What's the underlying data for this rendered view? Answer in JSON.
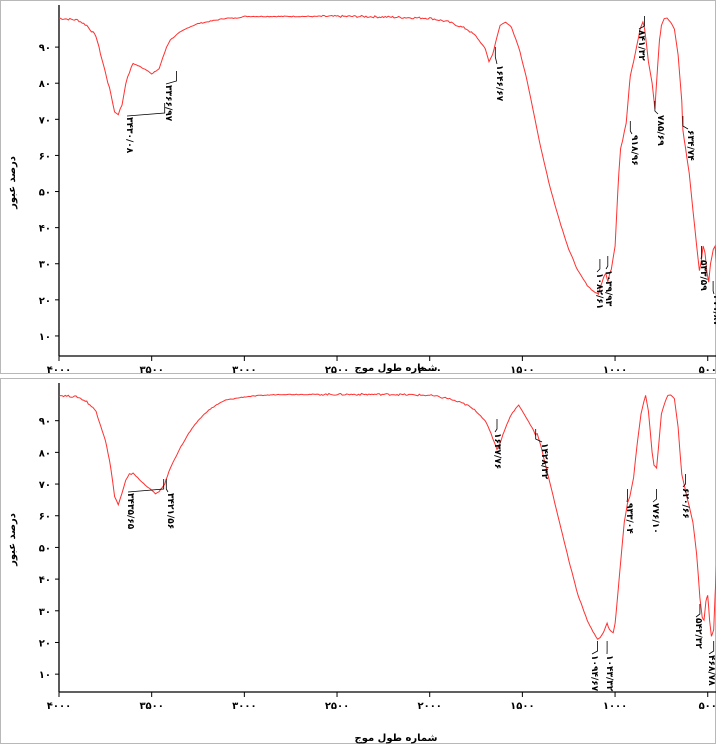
{
  "chart_data": [
    {
      "type": "line",
      "xlabel": "شماره طول موج",
      "ylabel": "درصد عبور",
      "x_reversed": true,
      "xlim": [
        4000,
        450
      ],
      "ylim": [
        5,
        100
      ],
      "x_ticks": [
        4000,
        3500,
        3000,
        2500,
        2000,
        1500,
        1000,
        500
      ],
      "x_tick_labels": [
        "۴۰۰۰",
        "۳۵۰۰",
        "۳۰۰۰",
        "۲۵۰۰",
        "۲۰۰۰",
        "۱۵۰۰",
        "۱۰۰۰",
        "۵۰۰"
      ],
      "y_ticks": [
        10,
        20,
        30,
        40,
        50,
        60,
        70,
        80,
        90
      ],
      "y_tick_labels": [
        "۱۰",
        "۲۰",
        "۳۰",
        "۴۰",
        "۵۰",
        "۶۰",
        "۷۰",
        "۸۰",
        "۹۰"
      ],
      "line_color": "#ff3030",
      "series": [
        {
          "x": [
            4000,
            3900,
            3850,
            3800,
            3760,
            3720,
            3700,
            3680,
            3660,
            3640,
            3620,
            3600,
            3560,
            3520,
            3500,
            3460,
            3440,
            3420,
            3400,
            3350,
            3300,
            3250,
            3200,
            3150,
            3100,
            3050,
            3000,
            2900,
            2800,
            2600,
            2400,
            2200,
            2000,
            1900,
            1800,
            1750,
            1700,
            1680,
            1660,
            1646,
            1620,
            1590,
            1560,
            1520,
            1480,
            1440,
            1400,
            1350,
            1300,
            1250,
            1200,
            1150,
            1120,
            1090,
            1082,
            1070,
            1060,
            1050,
            1039,
            1030,
            1020,
            1000,
            990,
            980,
            970,
            960,
            940,
            925,
            918,
            900,
            880,
            865,
            850,
            840,
            820,
            800,
            785,
            770,
            760,
            750,
            735,
            720,
            700,
            680,
            660,
            640,
            634,
            620,
            600,
            580,
            560,
            545,
            534,
            525,
            515,
            505,
            495,
            485,
            470,
            460,
            450
          ],
          "y": [
            98,
            97.5,
            96,
            93,
            85,
            77,
            72,
            71.5,
            74,
            80,
            83,
            85.5,
            84.5,
            83.5,
            82.5,
            84,
            87,
            90,
            92,
            94,
            95.5,
            96.5,
            97,
            97.5,
            98,
            98,
            98.5,
            98.5,
            98.5,
            98.5,
            98.5,
            98.3,
            98,
            97,
            95,
            93,
            89.5,
            86,
            88,
            91,
            96,
            97,
            95.5,
            90,
            82,
            72,
            62,
            51,
            42,
            34,
            28,
            24,
            22.5,
            21.5,
            23,
            25,
            26.5,
            27.5,
            25,
            27,
            28.5,
            35,
            45,
            55,
            62,
            64,
            69,
            78,
            82,
            86,
            91,
            95,
            97,
            95,
            86,
            80,
            73,
            85,
            92,
            96,
            98,
            98,
            97,
            95,
            88,
            75,
            67,
            62,
            55,
            45,
            35,
            28,
            31,
            35,
            33,
            28,
            25,
            30,
            34,
            35,
            28
          ]
        }
      ],
      "annotations": [
        "۳۴۳۰/۰۸",
        "۳۳۶۶/۹۷",
        "۱۶۴۶/۶۷",
        "۸۴۱/۳۲",
        "۹۱۸/۹۶",
        "۷۸۵/۶۹",
        "۶۳۴/۷۴",
        "۱۰۸۲/۶۱",
        "۱۰۳۹/۹۳",
        "۵۳۳/۵۹",
        "۴۷۱/۸۷"
      ]
    },
    {
      "type": "line",
      "xlabel": "شماره طول موج",
      "ylabel": "درصد عبور",
      "x_reversed": true,
      "xlim": [
        4000,
        450
      ],
      "ylim": [
        5,
        100
      ],
      "x_ticks": [
        4000,
        3500,
        3000,
        2500,
        2000,
        1500,
        1000,
        500
      ],
      "x_tick_labels": [
        "۴۰۰۰",
        "۳۵۰۰",
        "۳۰۰۰",
        "۲۵۰۰",
        "۲۰۰۰",
        "۱۵۰۰",
        "۱۰۰۰",
        "۵۰۰"
      ],
      "y_ticks": [
        10,
        20,
        30,
        40,
        50,
        60,
        70,
        80,
        90
      ],
      "y_tick_labels": [
        "۱۰",
        "۲۰",
        "۳۰",
        "۴۰",
        "۵۰",
        "۶۰",
        "۷۰",
        "۸۰",
        "۹۰"
      ],
      "line_color": "#ff3030",
      "series": [
        {
          "x": [
            4000,
            3900,
            3850,
            3800,
            3750,
            3720,
            3700,
            3680,
            3660,
            3640,
            3620,
            3600,
            3560,
            3520,
            3500,
            3480,
            3460,
            3430,
            3400,
            3350,
            3300,
            3250,
            3200,
            3150,
            3100,
            3000,
            2900,
            2800,
            2600,
            2400,
            2200,
            2000,
            1900,
            1800,
            1750,
            1700,
            1670,
            1650,
            1637,
            1620,
            1590,
            1560,
            1520,
            1480,
            1440,
            1430,
            1420,
            1400,
            1350,
            1300,
            1250,
            1200,
            1150,
            1120,
            1094,
            1080,
            1065,
            1043,
            1030,
            1010,
            1000,
            990,
            975,
            960,
            950,
            933,
            920,
            900,
            880,
            860,
            845,
            835,
            820,
            800,
            790,
            776,
            765,
            750,
            730,
            715,
            700,
            680,
            660,
            640,
            620,
            600,
            580,
            560,
            542,
            530,
            520,
            510,
            500,
            490,
            480,
            468,
            460,
            450
          ],
          "y": [
            98,
            97.5,
            96,
            93,
            84,
            75,
            66,
            63.5,
            67,
            71,
            73,
            73.5,
            71,
            69,
            68,
            67,
            67.5,
            70,
            75,
            81,
            86,
            90,
            93,
            95,
            96.5,
            97.5,
            98,
            98.3,
            98.3,
            98.3,
            98.3,
            98,
            97,
            95,
            93,
            90,
            86,
            83,
            81,
            83,
            88,
            92,
            95,
            91,
            87,
            85.5,
            86,
            82,
            70,
            58,
            46,
            35,
            27,
            23.5,
            21,
            21.5,
            23,
            26,
            24,
            23,
            26,
            32,
            42,
            52,
            58,
            64,
            66,
            72,
            83,
            92,
            96,
            98,
            93,
            80,
            76,
            75,
            82,
            92,
            96,
            98,
            98,
            97,
            88,
            73,
            68,
            63,
            58,
            48,
            34,
            28,
            27,
            33,
            35,
            27,
            22,
            24,
            35,
            48
          ]
        }
      ],
      "annotations": [
        "۳۴۳۵/۶۵",
        "۳۴۲۱/۵۶",
        "۱۶۳۷/۷۶",
        "۱۴۲۸/۳۲",
        "۹۳۳/۰۴",
        "۷۷۶/۱۰",
        "۶۲۰/۶۶",
        "۱۰۹۴/۶۷",
        "۱۰۴۳/۳۲",
        "۵۴۲/۳۲",
        "۴۶۸/۷۸"
      ]
    }
  ]
}
